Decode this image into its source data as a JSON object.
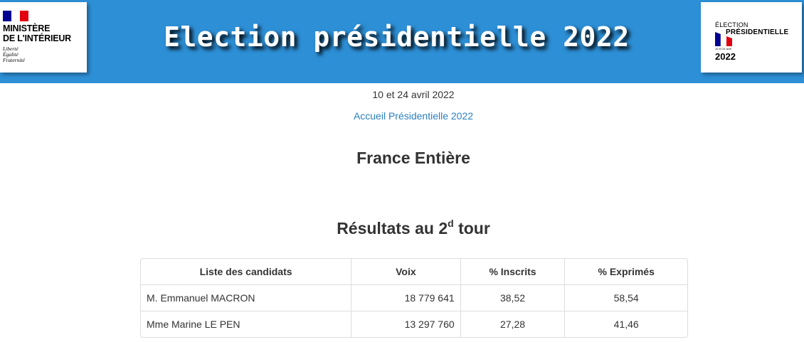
{
  "banner": {
    "title": "Election présidentielle 2022",
    "background": "#2d8fd6",
    "logo_left": {
      "line1": "MINISTÈRE",
      "line2": "DE L'INTÉRIEUR",
      "motto": [
        "Liberté",
        "Égalité",
        "Fraternité"
      ],
      "flag_colors": [
        "#000091",
        "#ffffff",
        "#e1000f"
      ]
    },
    "logo_right": {
      "small": "ÉLECTION",
      "big": "PRÉSIDENTIELLE",
      "dates": "10 et 24 avril",
      "year": "2022"
    }
  },
  "subtitle_dates": "10 et 24 avril 2022",
  "home_link": "Accueil Présidentielle 2022",
  "region_title": "France Entière",
  "results_title": {
    "text": "Résultats au 2",
    "sup": "d",
    "suffix": " tour"
  },
  "table": {
    "headers": [
      "Liste des candidats",
      "Voix",
      "% Inscrits",
      "% Exprimés"
    ],
    "rows": [
      {
        "name": "M. Emmanuel MACRON",
        "voix": "18 779 641",
        "inscrits": "38,52",
        "exprimes": "58,54"
      },
      {
        "name": "Mme Marine LE PEN",
        "voix": "13 297 760",
        "inscrits": "27,28",
        "exprimes": "41,46"
      }
    ]
  }
}
